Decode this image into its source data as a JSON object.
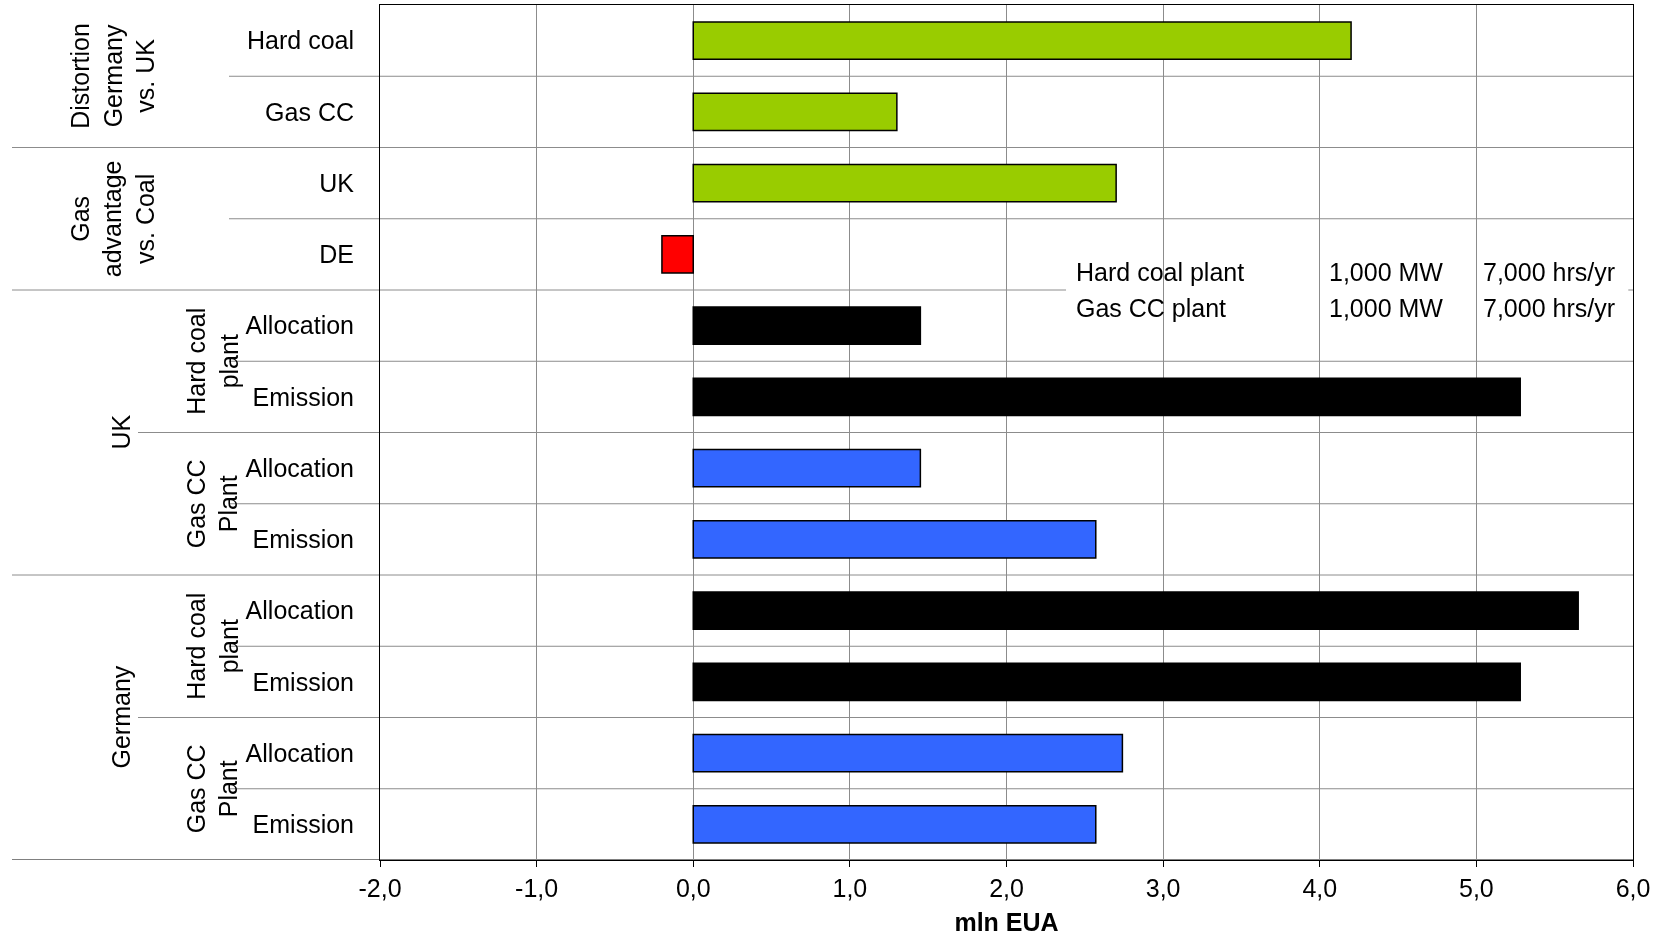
{
  "chart_data": {
    "type": "bar",
    "orientation": "horizontal",
    "xlabel": "mln EUA",
    "categories": [
      "Hard coal",
      "Gas CC",
      "UK",
      "DE",
      "Allocation",
      "Emission",
      "Allocation",
      "Emission",
      "Allocation",
      "Emission",
      "Allocation",
      "Emission"
    ],
    "values": [
      4.2,
      1.3,
      2.7,
      -0.2,
      1.45,
      5.28,
      1.45,
      2.57,
      5.65,
      5.28,
      2.74,
      2.57
    ],
    "colors": [
      "#99cc00",
      "#99cc00",
      "#99cc00",
      "#ff0000",
      "#000000",
      "#000000",
      "#3366ff",
      "#3366ff",
      "#000000",
      "#000000",
      "#3366ff",
      "#3366ff"
    ],
    "xlim": [
      -2,
      6
    ],
    "xticks": [
      {
        "value": -2,
        "label": "-2,0"
      },
      {
        "value": -1,
        "label": "-1,0"
      },
      {
        "value": 0,
        "label": "0,0"
      },
      {
        "value": 1,
        "label": "1,0"
      },
      {
        "value": 2,
        "label": "2,0"
      },
      {
        "value": 3,
        "label": "3,0"
      },
      {
        "value": 4,
        "label": "4,0"
      },
      {
        "value": 5,
        "label": "5,0"
      },
      {
        "value": 6,
        "label": "6,0"
      }
    ],
    "grid": true,
    "annotations": [
      "Distortion\nGermany\nvs. UK",
      "Gas\nadvantage\nvs. Coal",
      "UK",
      "Hard coal\nplant",
      "Gas CC\nPlant",
      "Germany",
      "Hard coal\nplant",
      "Gas CC\nPlant",
      "Hard coal plant",
      "1,000 MW",
      "7,000 hrs/yr",
      "Gas CC plant",
      "1,000 MW",
      "7,000 hrs/yr"
    ]
  }
}
